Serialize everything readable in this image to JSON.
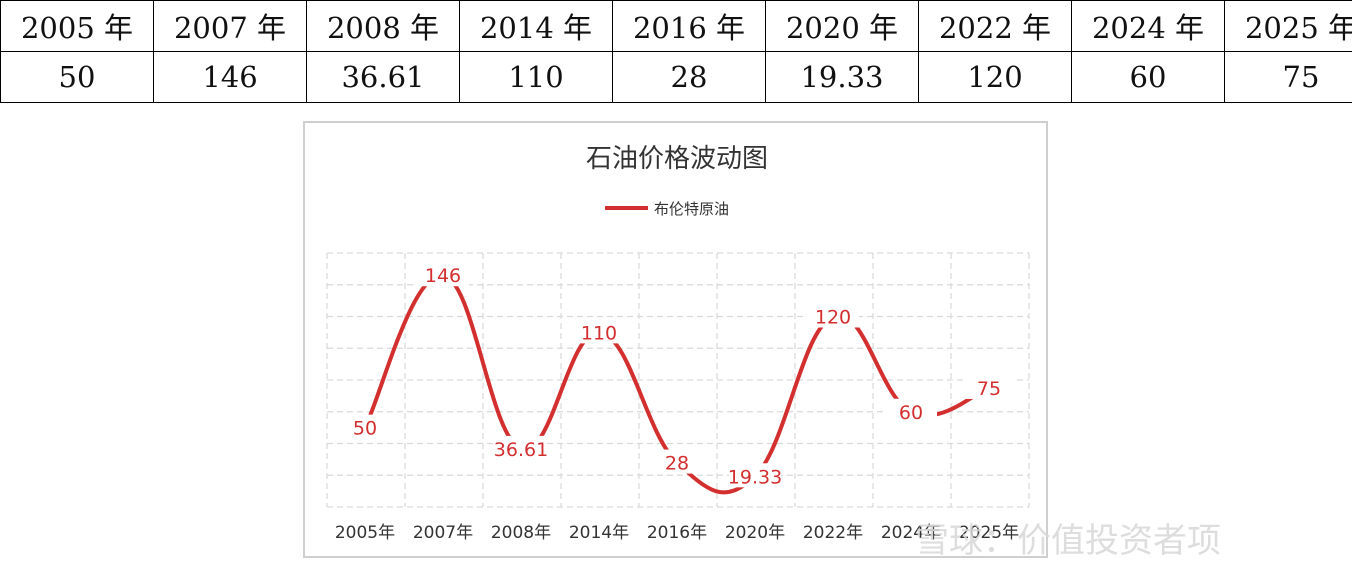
{
  "table": {
    "headers": [
      "2005 年",
      "2007 年",
      "2008 年",
      "2014 年",
      "2016 年",
      "2020 年",
      "2022 年",
      "2024 年",
      "2025 年"
    ],
    "values": [
      "50",
      "146",
      "36.61",
      "110",
      "28",
      "19.33",
      "120",
      "60",
      "75"
    ]
  },
  "chart_data": {
    "type": "line",
    "title": "石油价格波动图",
    "categories": [
      "2005年",
      "2007年",
      "2008年",
      "2014年",
      "2016年",
      "2020年",
      "2022年",
      "2024年",
      "2025年"
    ],
    "series": [
      {
        "name": "布伦特原油",
        "values": [
          50,
          146,
          36.61,
          110,
          28,
          19.33,
          120,
          60,
          75
        ],
        "color": "#d32f2f"
      }
    ],
    "data_labels": [
      "50",
      "146",
      "36.61",
      "110",
      "28",
      "19.33",
      "120",
      "60",
      "75"
    ],
    "ylim": [
      0,
      160
    ],
    "grid": true,
    "legend_position": "top-center",
    "line_style": "smooth"
  },
  "watermark": "雪球：价值投资者项"
}
